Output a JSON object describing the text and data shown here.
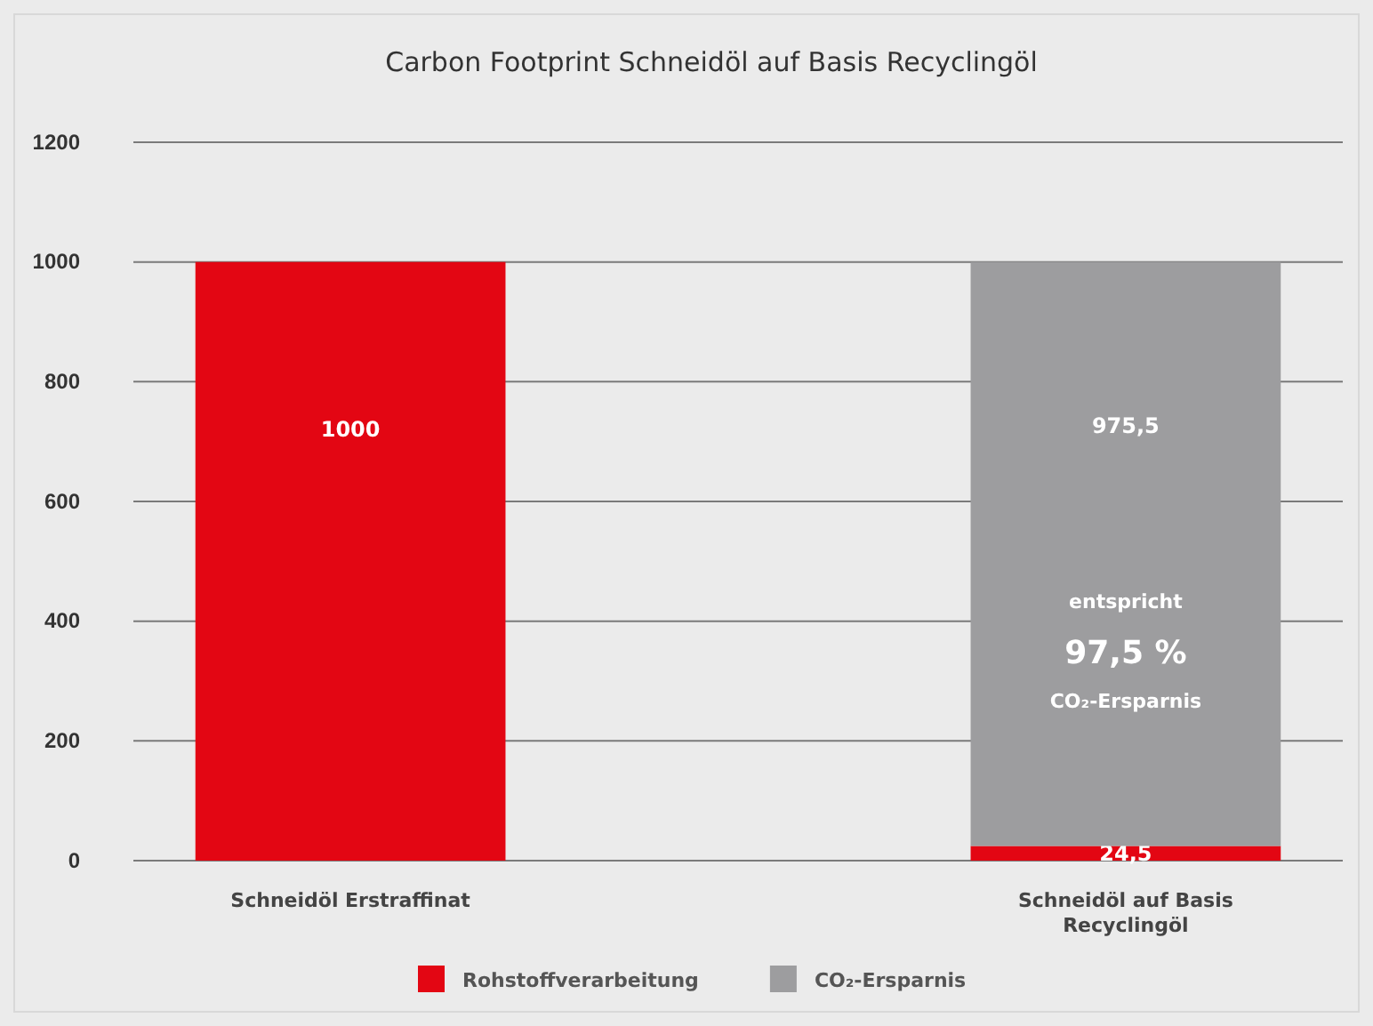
{
  "chart_data": {
    "type": "bar",
    "title": "Carbon Footprint Schneidöl auf Basis Recyclingöl",
    "categories": [
      "Schneidöl Erstraffinat",
      "Schneidöl auf Basis\nRecyclingöl"
    ],
    "stacked": true,
    "series": [
      {
        "name": "Rohstoffverarbeitung",
        "color": "#e30613",
        "values": [
          1000,
          24.5
        ],
        "value_labels": [
          "1000",
          "24,5"
        ]
      },
      {
        "name": "CO₂-Ersparnis",
        "color": "#9d9d9f",
        "values": [
          null,
          975.5
        ],
        "value_labels": [
          null,
          "975,5"
        ]
      }
    ],
    "ylim": [
      0,
      1200
    ],
    "yticks": [
      0,
      200,
      400,
      600,
      800,
      1000,
      1200
    ],
    "grid": "y",
    "legend": "bottom",
    "annotations": [
      "entspricht",
      "97,5 %",
      "CO₂-Ersparnis"
    ]
  }
}
